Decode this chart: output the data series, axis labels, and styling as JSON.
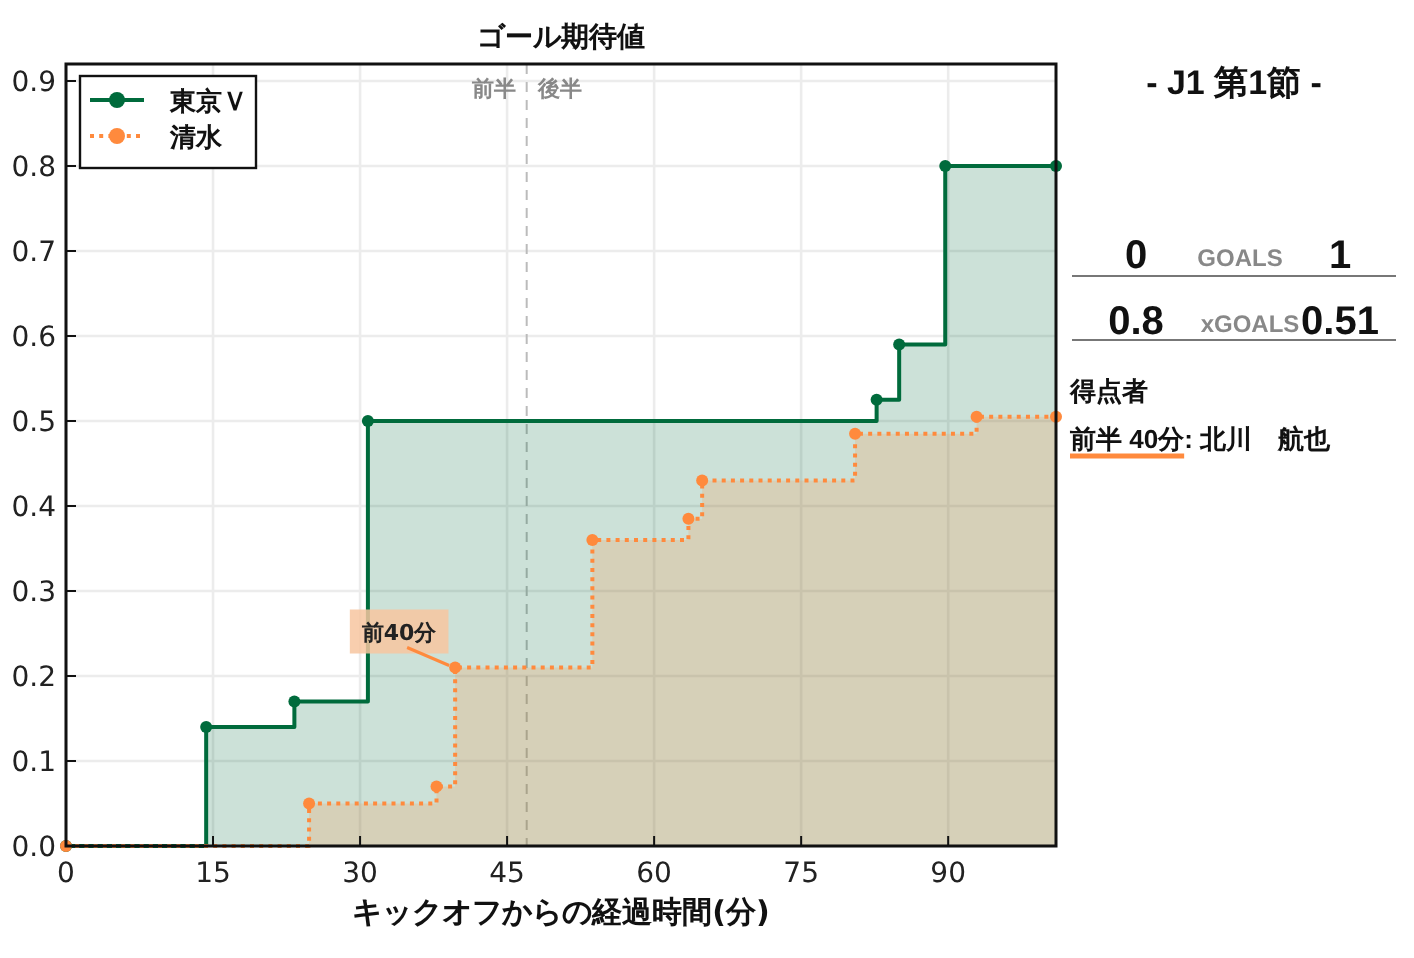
{
  "chart_data": [
    {
      "type": "step",
      "title": "ゴール期待値",
      "xlabel": "キックオフからの経過時間(分)",
      "xlim": [
        0,
        101
      ],
      "ylim": [
        0,
        0.92
      ],
      "xticks": [
        0,
        15,
        30,
        45,
        60,
        75,
        90
      ],
      "yticks": [
        {
          "value": 0,
          "label": "0.0"
        },
        0.1,
        0.2,
        0.3,
        0.4,
        0.5,
        0.6,
        0.7,
        0.8,
        0.9
      ],
      "grid": true,
      "legend": "top left",
      "marker": "circle",
      "series": [
        {
          "name": "東京Ｖ",
          "color": "#006b3c",
          "line_style": "solid",
          "x": [
            0,
            14.3,
            23.3,
            30.8,
            82.7,
            85.0,
            89.7,
            101
          ],
          "values": [
            0,
            0.14,
            0.17,
            0.5,
            0.525,
            0.59,
            0.8,
            0.8
          ]
        },
        {
          "name": "清水",
          "color": "#ff8a3d",
          "line_style": "dotted",
          "x": [
            0,
            24.8,
            37.8,
            39.7,
            53.7,
            63.5,
            64.9,
            80.5,
            92.9,
            101
          ],
          "values": [
            0,
            0.05,
            0.07,
            0.21,
            0.36,
            0.385,
            0.43,
            0.485,
            0.505,
            0.505
          ]
        }
      ],
      "ref_lines": [
        {
          "axis": "x",
          "value": 47,
          "label": "前半　後半",
          "color": "#bbbbbb",
          "line_style": "dashed"
        }
      ],
      "annotations": [
        {
          "text": "前40分",
          "x": 39.7,
          "y": 0.21
        }
      ]
    },
    {
      "type": "other",
      "title": "- J1 第1節 -",
      "annotations": [
        "0",
        "GOALS",
        "1",
        "0.8",
        "xGOALS",
        "0.51",
        "得点者",
        "前半 40分: 北川　航也"
      ]
    }
  ]
}
